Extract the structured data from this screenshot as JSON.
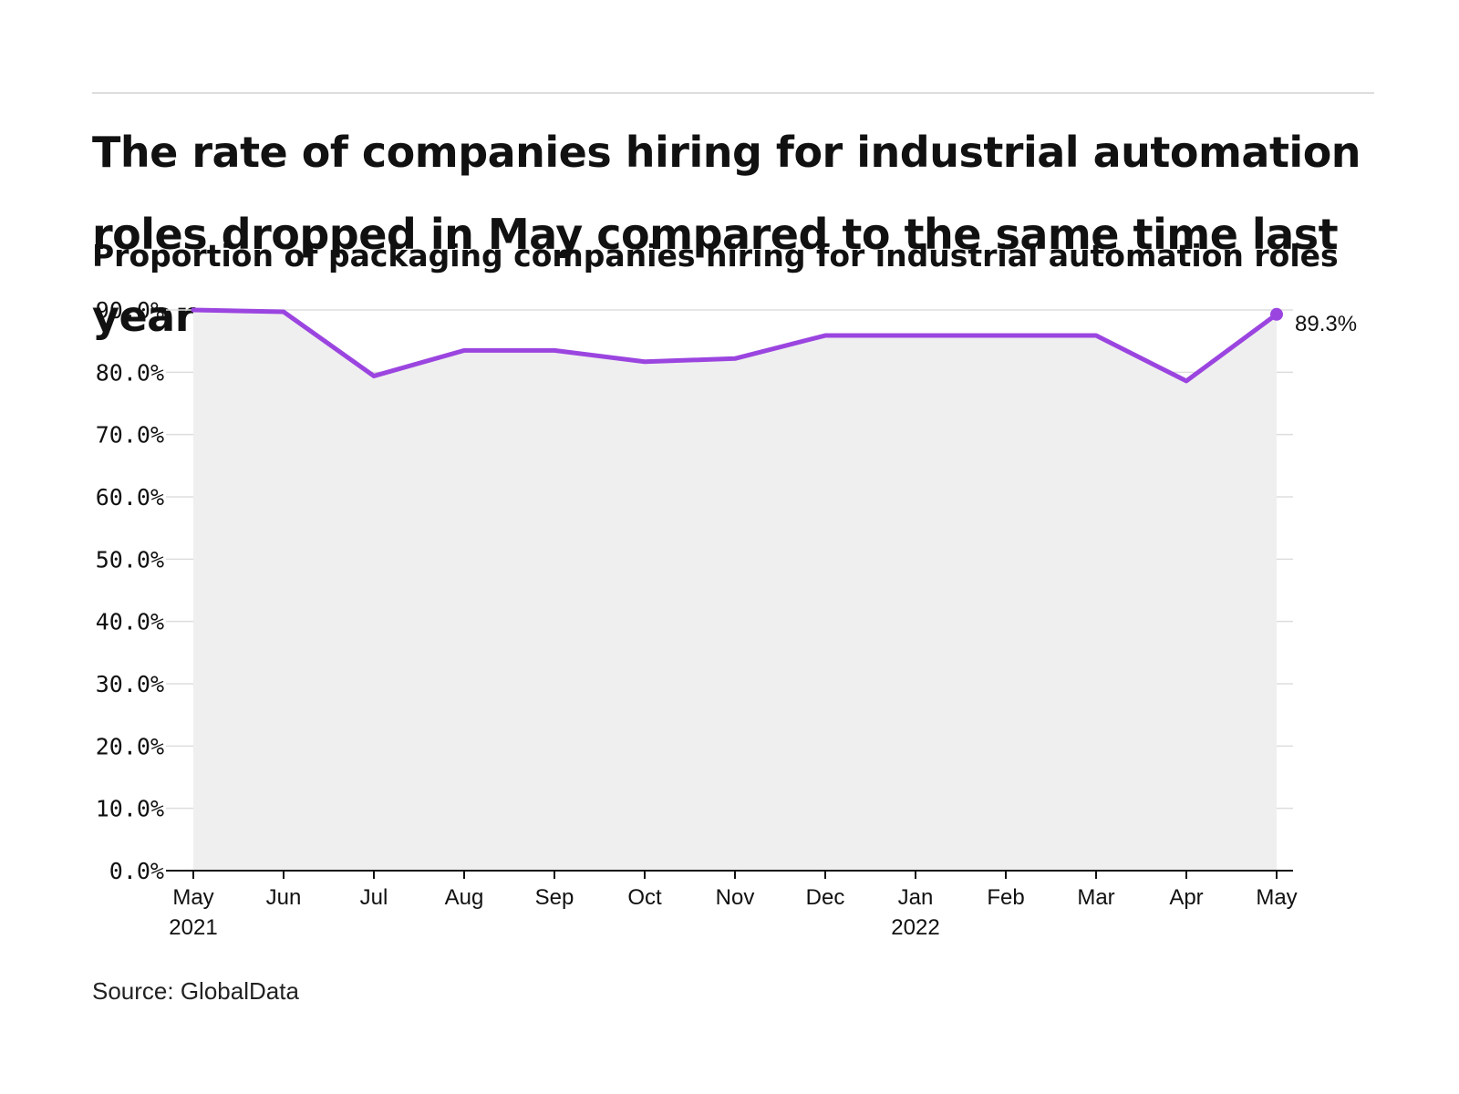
{
  "title": "The rate of companies hiring for industrial automation roles dropped in May compared to the same time last year",
  "subtitle": "Proportion of packaging companies hiring for industrial automation roles",
  "source": "Source: GlobalData",
  "colors": {
    "line": "#9b45e0",
    "area": "#efefef",
    "grid": "#dddddd",
    "axis": "#111111",
    "text": "#111111"
  },
  "chart_data": {
    "type": "line",
    "title": "The rate of companies hiring for industrial automation roles dropped in May compared to the same time last year",
    "subtitle": "Proportion of packaging companies hiring for industrial automation roles",
    "x": [
      "May 2021",
      "Jun 2021",
      "Jul 2021",
      "Aug 2021",
      "Sep 2021",
      "Oct 2021",
      "Nov 2021",
      "Dec 2021",
      "Jan 2022",
      "Feb 2022",
      "Mar 2022",
      "Apr 2022",
      "May 2022"
    ],
    "x_tick_labels": [
      [
        "May",
        "2021"
      ],
      [
        "Jun"
      ],
      [
        "Jul"
      ],
      [
        "Aug"
      ],
      [
        "Sep"
      ],
      [
        "Oct"
      ],
      [
        "Nov"
      ],
      [
        "Dec"
      ],
      [
        "Jan",
        "2022"
      ],
      [
        "Feb"
      ],
      [
        "Mar"
      ],
      [
        "Apr"
      ],
      [
        "May"
      ]
    ],
    "series": [
      {
        "values": [
          90.0,
          89.7,
          79.4,
          83.5,
          83.5,
          81.7,
          82.2,
          85.9,
          85.9,
          85.9,
          85.9,
          78.6,
          89.3
        ]
      }
    ],
    "y_ticks": [
      0,
      10,
      20,
      30,
      40,
      50,
      60,
      70,
      80,
      90
    ],
    "y_tick_labels": [
      "0.0%",
      "10.0%",
      "20.0%",
      "30.0%",
      "40.0%",
      "50.0%",
      "60.0%",
      "70.0%",
      "80.0%",
      "90.0%"
    ],
    "ylim": [
      0,
      90
    ],
    "end_label": "89.3%",
    "xlabel": "",
    "ylabel": "",
    "grid": true,
    "legend": "none",
    "area_fill": true
  }
}
